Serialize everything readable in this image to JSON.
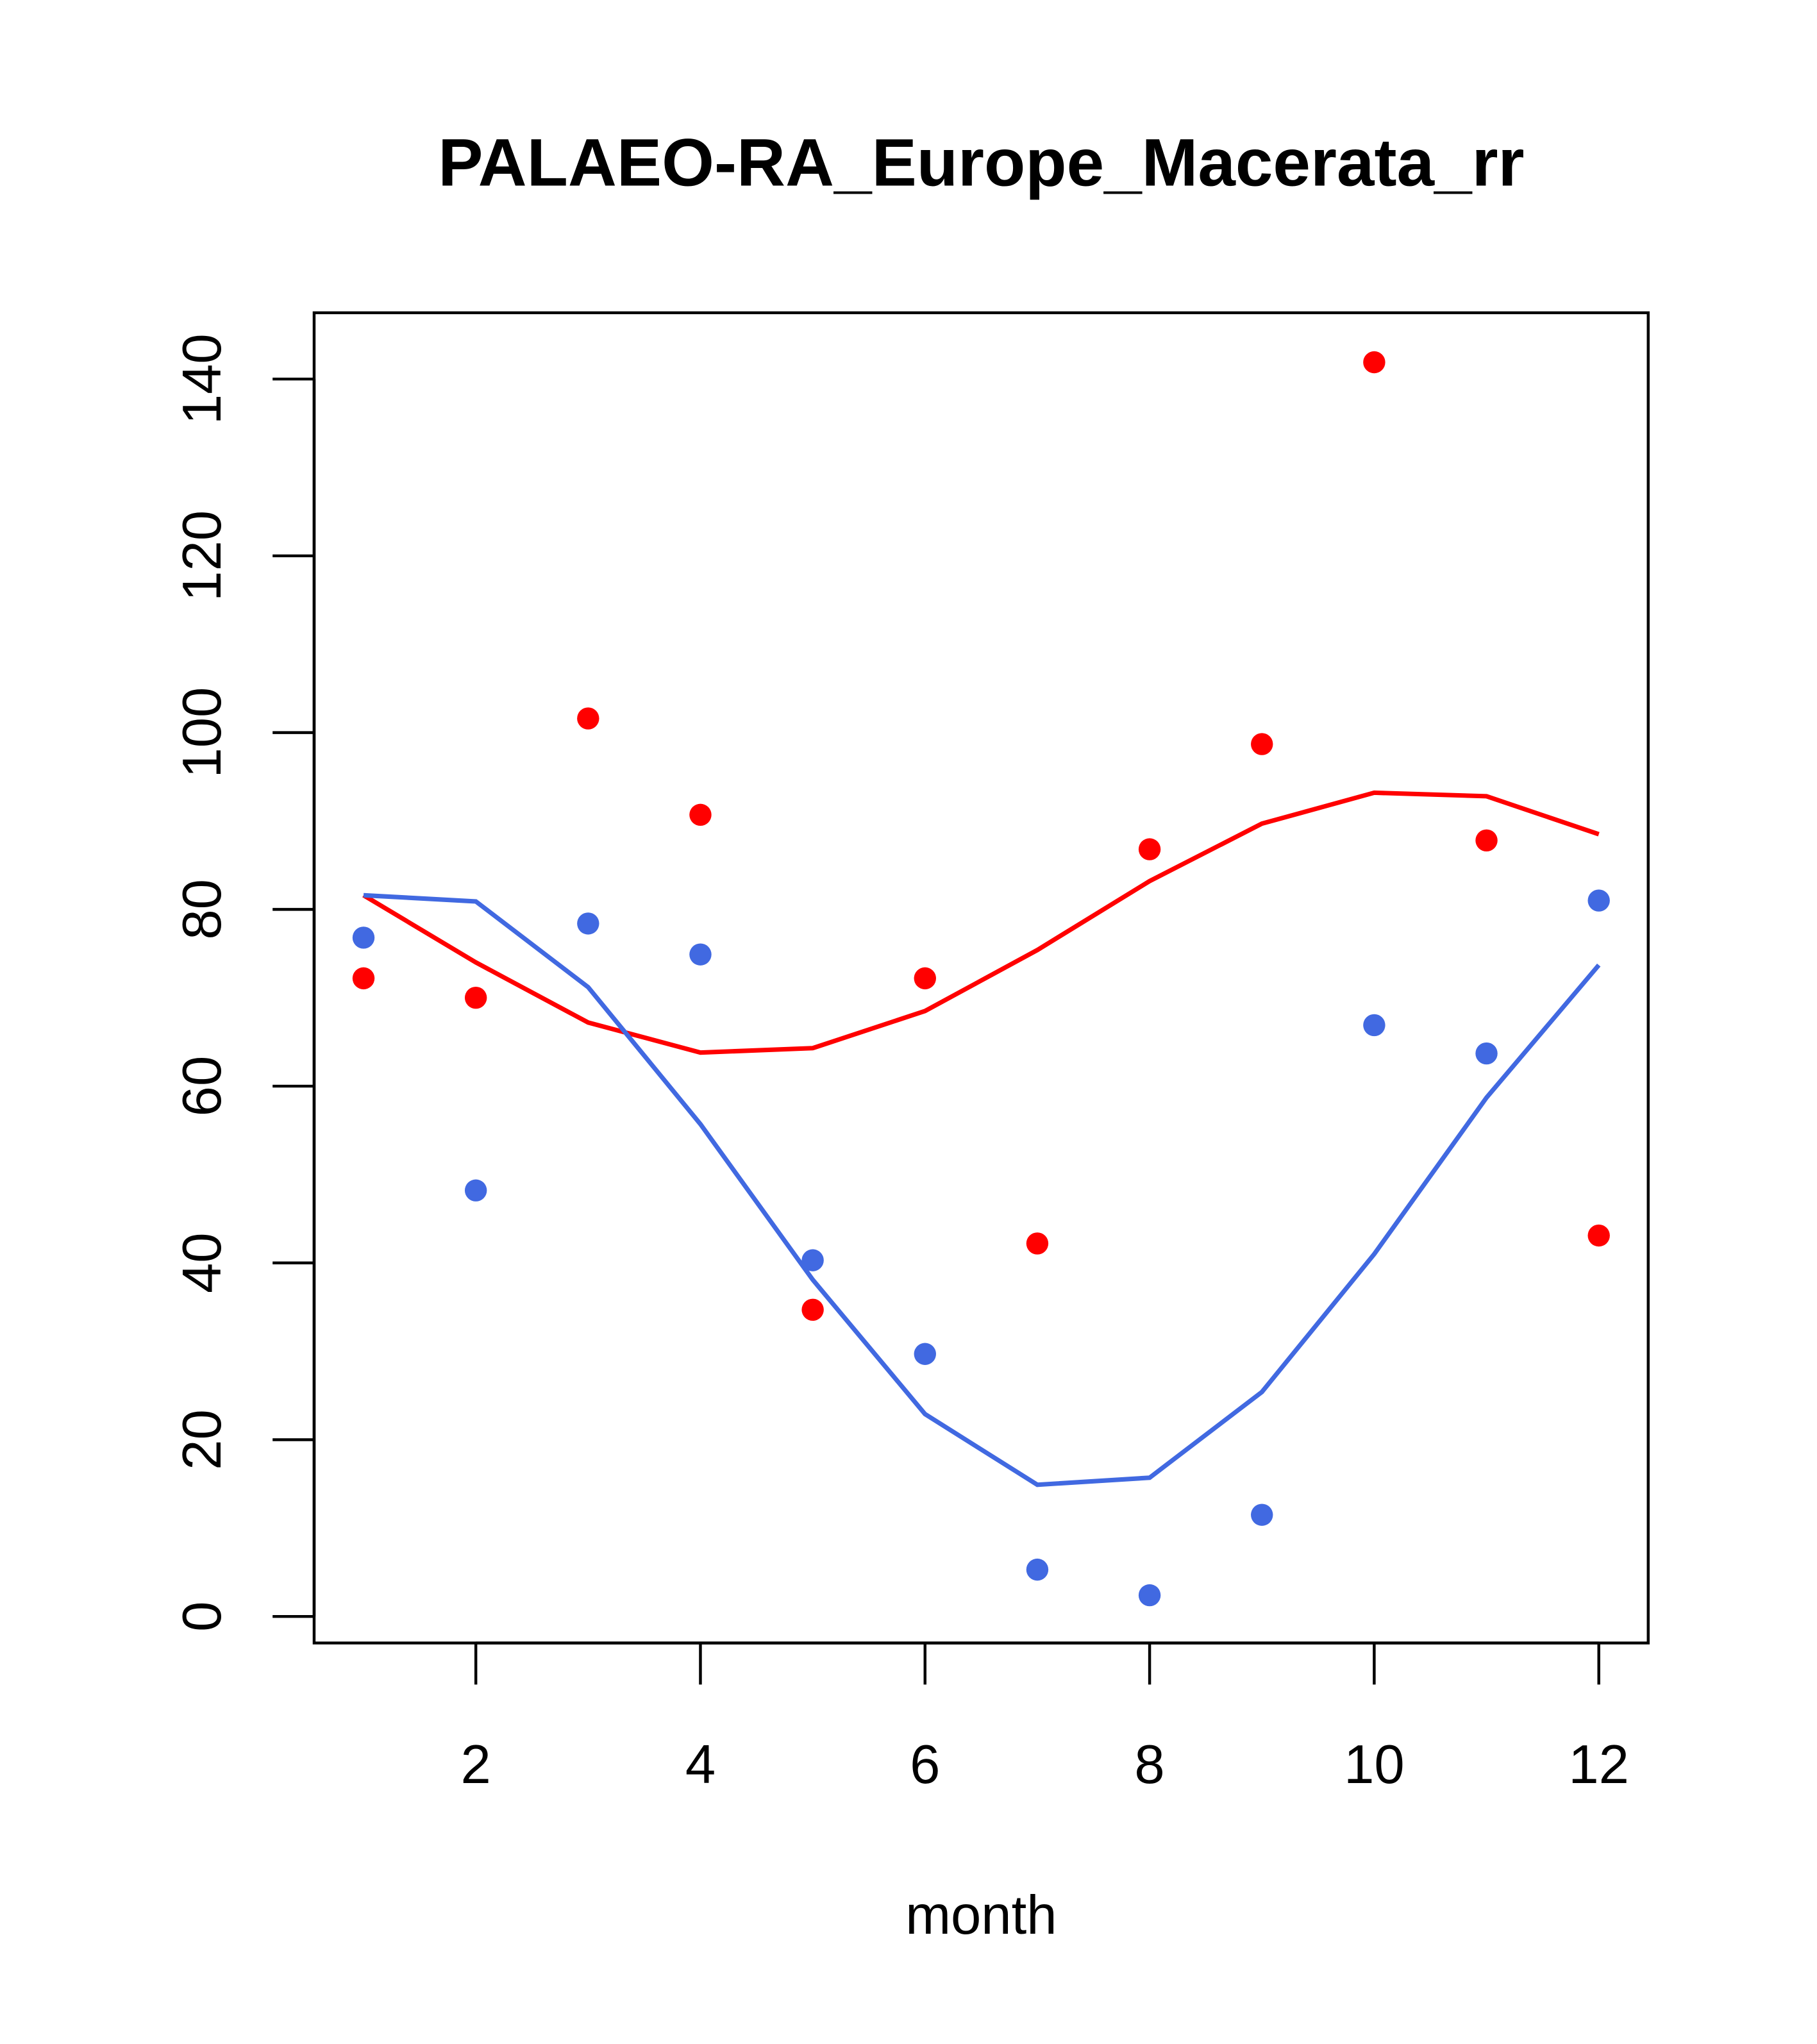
{
  "chart_data": {
    "type": "scatter",
    "title": "PALAEO-RA_Europe_Macerata_rr",
    "xlabel": "month",
    "ylabel": "",
    "xlim": [
      0.56,
      12.44
    ],
    "ylim": [
      -3,
      147.5
    ],
    "x_ticks": [
      2,
      4,
      6,
      8,
      10,
      12
    ],
    "y_ticks": [
      0,
      20,
      40,
      60,
      80,
      100,
      120,
      140
    ],
    "grid": false,
    "x": [
      1,
      2,
      3,
      4,
      5,
      6,
      7,
      8,
      9,
      10,
      11,
      12
    ],
    "series": [
      {
        "name": "red points",
        "kind": "points",
        "color": "#ff0000",
        "values": [
          72.2,
          70.0,
          101.6,
          90.7,
          34.7,
          72.2,
          42.2,
          86.8,
          98.7,
          141.9,
          87.8,
          43.1
        ]
      },
      {
        "name": "blue points",
        "kind": "points",
        "color": "#4169e1",
        "values": [
          76.8,
          48.2,
          78.4,
          74.9,
          40.3,
          29.7,
          5.3,
          2.4,
          11.5,
          66.9,
          63.7,
          81.0
        ]
      },
      {
        "name": "red line",
        "kind": "line",
        "color": "#ff0000",
        "values": [
          81.6,
          74.0,
          67.2,
          63.8,
          64.3,
          68.5,
          75.4,
          83.2,
          89.7,
          93.2,
          92.8,
          88.5
        ]
      },
      {
        "name": "blue line",
        "kind": "line",
        "color": "#4169e1",
        "values": [
          81.6,
          80.9,
          71.2,
          55.7,
          38.1,
          22.9,
          14.9,
          15.7,
          25.4,
          41.0,
          58.7,
          73.7
        ]
      }
    ]
  }
}
